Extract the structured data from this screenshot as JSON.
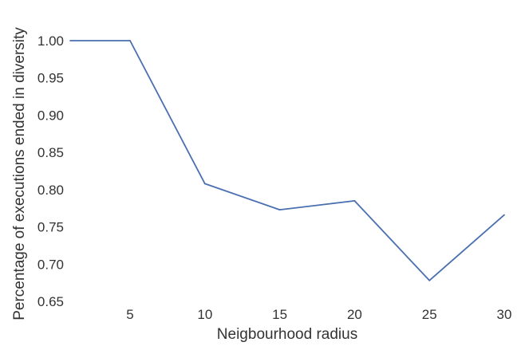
{
  "chart_data": {
    "type": "line",
    "title": "",
    "xlabel": "Neigbourhood radius",
    "ylabel": "Percentage of executions ended in diversity",
    "x": [
      1,
      5,
      10,
      15,
      20,
      25,
      30
    ],
    "series": [
      {
        "values": [
          1.0,
          1.0,
          0.808,
          0.773,
          0.785,
          0.678,
          0.766
        ],
        "color": "#4a6fb0"
      }
    ],
    "xticks": [
      5,
      10,
      15,
      20,
      25,
      30
    ],
    "xtick_labels": [
      "5",
      "10",
      "15",
      "20",
      "25",
      "30"
    ],
    "yticks": [
      0.65,
      0.7,
      0.75,
      0.8,
      0.85,
      0.9,
      0.95,
      1.0
    ],
    "ytick_labels": [
      "0.65",
      "0.70",
      "0.75",
      "0.80",
      "0.85",
      "0.90",
      "0.95",
      "1.00"
    ],
    "xlim": [
      1,
      30
    ],
    "ylim": [
      0.65,
      1.0
    ],
    "grid": false,
    "legend": "none"
  }
}
